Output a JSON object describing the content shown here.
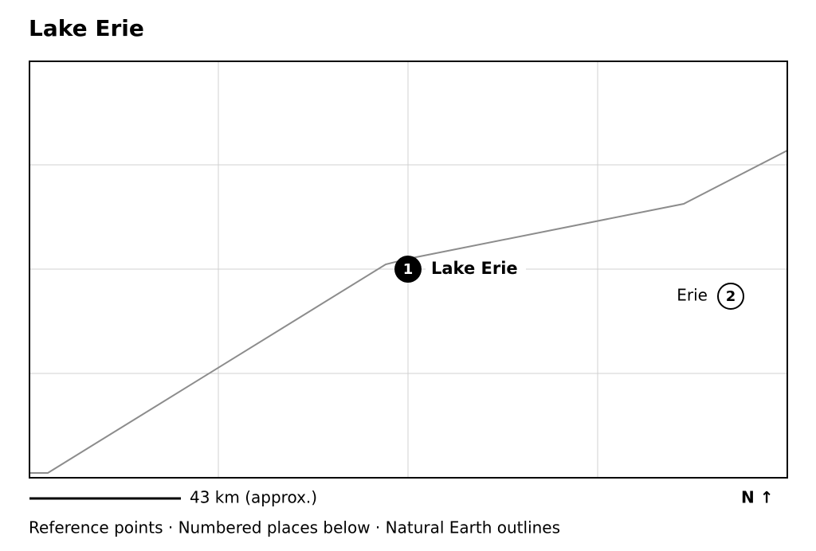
{
  "header": {
    "title": "Lake Erie"
  },
  "map": {
    "places": [
      {
        "number": "1",
        "label": "Lake Erie"
      },
      {
        "number": "2",
        "label": "Erie"
      }
    ]
  },
  "scale": {
    "label": "43 km (approx.)"
  },
  "north": {
    "label": "N ↑"
  },
  "footer": {
    "text": "Reference points · Numbered places below · Natural Earth outlines"
  }
}
